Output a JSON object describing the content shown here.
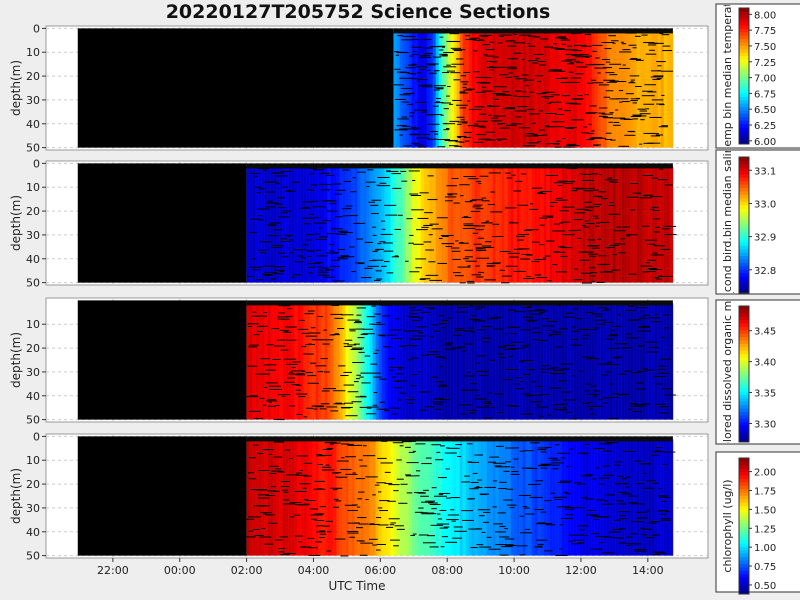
{
  "title": "20220127T205752 Science Sections",
  "colors": {
    "background": "#eeeeee",
    "plot_bg": "#ffffff",
    "grid": "#cccccc",
    "no_data": "#000000"
  },
  "chart_data": {
    "type": "heatmap",
    "title": "20220127T205752 Science Sections",
    "xlabel": "UTC Time",
    "x_tick_labels": [
      "22:00",
      "00:00",
      "02:00",
      "04:00",
      "06:00",
      "08:00",
      "10:00",
      "12:00",
      "14:00"
    ],
    "x_ticks_hours": [
      22,
      24,
      26,
      28,
      30,
      32,
      34,
      36,
      38
    ],
    "xlim_hours": [
      20.0,
      39.8
    ],
    "data_start_hours": [
      20.95,
      38.75
    ],
    "colormap": "jet",
    "panels": [
      {
        "ylabel": "depth(m)",
        "ylim": [
          51,
          -1
        ],
        "y_ticks": [
          0,
          10,
          20,
          30,
          40,
          50
        ],
        "y_tick_labels": [
          "0",
          "10",
          "20",
          "30",
          "40",
          "50"
        ],
        "colorbar_label": "sci_water_temp bin median temperature (degC)",
        "colorbar_ticks": [
          6.0,
          6.25,
          6.5,
          6.75,
          7.0,
          7.25,
          7.5,
          7.75,
          8.0
        ],
        "colorbar_tick_labels": [
          "6.00",
          "6.25",
          "6.50",
          "6.75",
          "7.00",
          "7.25",
          "7.50",
          "7.75",
          "8.00"
        ],
        "value_range": [
          5.95,
          8.1
        ],
        "no_data_until_hours": 30.4,
        "profile": [
          [
            30.4,
            6.55
          ],
          [
            30.8,
            6.35
          ],
          [
            31.2,
            6.15
          ],
          [
            31.5,
            6.3
          ],
          [
            31.8,
            6.9
          ],
          [
            32.2,
            7.4
          ],
          [
            32.5,
            7.75
          ],
          [
            33.0,
            7.9
          ],
          [
            34.0,
            7.95
          ],
          [
            35.0,
            7.9
          ],
          [
            36.0,
            7.85
          ],
          [
            36.5,
            7.7
          ],
          [
            37.0,
            7.5
          ],
          [
            38.75,
            7.45
          ]
        ]
      },
      {
        "ylabel": "depth(m)",
        "ylim": [
          51,
          -1
        ],
        "y_ticks": [
          0,
          10,
          20,
          30,
          40,
          50
        ],
        "y_tick_labels": [
          "0",
          "10",
          "20",
          "30",
          "40",
          "50"
        ],
        "colorbar_label": "sci_water_cond bird.bin median salinity (psu)",
        "colorbar_ticks": [
          32.8,
          32.9,
          33.0,
          33.1
        ],
        "colorbar_tick_labels": [
          "32.8",
          "32.9",
          "33.0",
          "33.1"
        ],
        "value_range": [
          32.73,
          33.14
        ],
        "no_data_until_hours": 26.0,
        "profile": [
          [
            26.0,
            32.76
          ],
          [
            28.0,
            32.77
          ],
          [
            29.0,
            32.8
          ],
          [
            30.0,
            32.85
          ],
          [
            30.6,
            32.92
          ],
          [
            31.0,
            32.98
          ],
          [
            31.5,
            33.02
          ],
          [
            32.0,
            33.05
          ],
          [
            33.0,
            33.07
          ],
          [
            34.0,
            33.08
          ],
          [
            35.0,
            33.09
          ],
          [
            36.0,
            33.11
          ],
          [
            37.0,
            33.12
          ],
          [
            38.75,
            33.11
          ]
        ]
      },
      {
        "ylabel": "depth(m)",
        "ylim": [
          51,
          -1
        ],
        "y_ticks": [
          10,
          20,
          30,
          40,
          50
        ],
        "y_tick_labels": [
          "10",
          "20",
          "30",
          "40",
          "50"
        ],
        "colorbar_label": "sci_fdom colored dissolved organic matter (ppb)",
        "colorbar_ticks": [
          3.3,
          3.35,
          3.4,
          3.45
        ],
        "colorbar_tick_labels": [
          "3.30",
          "3.35",
          "3.40",
          "3.45"
        ],
        "value_range": [
          3.27,
          3.49
        ],
        "no_data_until_hours": 26.0,
        "profile": [
          [
            26.0,
            3.47
          ],
          [
            27.5,
            3.46
          ],
          [
            28.3,
            3.45
          ],
          [
            28.8,
            3.42
          ],
          [
            29.2,
            3.39
          ],
          [
            29.6,
            3.35
          ],
          [
            30.0,
            3.31
          ],
          [
            30.5,
            3.29
          ],
          [
            32.0,
            3.28
          ],
          [
            35.0,
            3.28
          ],
          [
            38.75,
            3.28
          ]
        ]
      },
      {
        "ylabel": "depth(m)",
        "ylim": [
          51,
          -1
        ],
        "y_ticks": [
          0,
          10,
          20,
          30,
          40,
          50
        ],
        "y_tick_labels": [
          "0",
          "10",
          "20",
          "30",
          "40",
          "50"
        ],
        "colorbar_label": "chlorophyll (ug/l)",
        "colorbar_ticks": [
          0.5,
          0.75,
          1.0,
          1.25,
          1.5,
          1.75,
          2.0
        ],
        "colorbar_tick_labels": [
          "0.50",
          "0.75",
          "1.00",
          "1.25",
          "1.50",
          "1.75",
          "2.00"
        ],
        "value_range": [
          0.38,
          2.18
        ],
        "no_data_until_hours": 26.0,
        "profile": [
          [
            26.0,
            2.05
          ],
          [
            27.5,
            2.0
          ],
          [
            28.5,
            1.9
          ],
          [
            29.5,
            1.75
          ],
          [
            30.3,
            1.5
          ],
          [
            31.0,
            1.25
          ],
          [
            32.0,
            1.05
          ],
          [
            33.0,
            0.9
          ],
          [
            34.0,
            0.78
          ],
          [
            35.0,
            0.68
          ],
          [
            36.0,
            0.58
          ],
          [
            37.0,
            0.52
          ],
          [
            38.0,
            0.5
          ],
          [
            38.75,
            0.52
          ]
        ]
      }
    ]
  }
}
